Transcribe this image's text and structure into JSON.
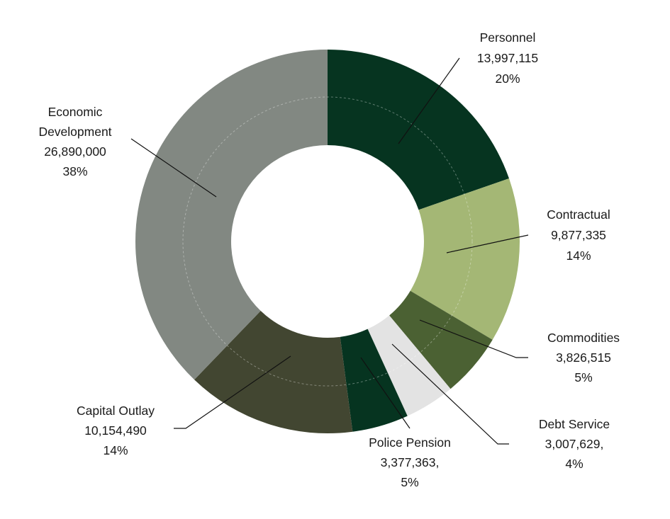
{
  "chart_data": {
    "type": "pie",
    "variant": "donut",
    "title": "",
    "start": "top",
    "direction": "clockwise",
    "slices": [
      {
        "name": "Personnel",
        "value": 13997115,
        "value_label": "13,997,115",
        "pct_label": "20%",
        "color": "#063420"
      },
      {
        "name": "Contractual",
        "value": 9877335,
        "value_label": "9,877,335",
        "pct_label": "14%",
        "color": "#a4b775"
      },
      {
        "name": "Commodities",
        "value": 3826515,
        "value_label": "3,826,515",
        "pct_label": "5%",
        "color": "#4b6133"
      },
      {
        "name": "Debt Service",
        "value": 3007629,
        "value_label": "3,007,629,",
        "pct_label": "4%",
        "color": "#e3e3e3"
      },
      {
        "name": "Police Pension",
        "value": 3377363,
        "value_label": "3,377,363,",
        "pct_label": "5%",
        "color": "#063420"
      },
      {
        "name": "Capital Outlay",
        "value": 10154490,
        "value_label": "10,154,490",
        "pct_label": "14%",
        "color": "#424631"
      },
      {
        "name": "Economic Development",
        "name_lines": [
          "Economic",
          "Development"
        ],
        "value": 26890000,
        "value_label": "26,890,000",
        "pct_label": "38%",
        "color": "#828882"
      }
    ]
  }
}
